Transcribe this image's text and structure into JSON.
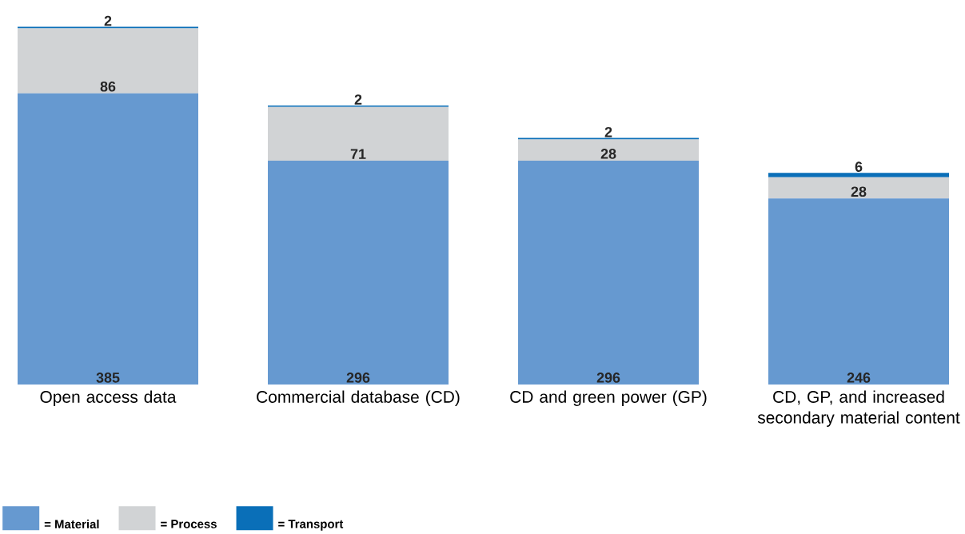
{
  "chart_data": {
    "type": "bar",
    "stacked": true,
    "data_labels": true,
    "legend": "bottom left",
    "categories": [
      "Open access data",
      "Commercial database (CD)",
      "CD and green power (GP)",
      "CD, GP, and increased secondary material content"
    ],
    "series": [
      {
        "name": "= Material",
        "color": "#6699d0",
        "values": [
          385,
          296,
          296,
          246
        ]
      },
      {
        "name": "= Process",
        "color": "#d1d3d5",
        "values": [
          86,
          71,
          28,
          28
        ]
      },
      {
        "name": "= Transport",
        "color": "#0a6fb8",
        "values": [
          2,
          2,
          2,
          6
        ]
      }
    ]
  }
}
